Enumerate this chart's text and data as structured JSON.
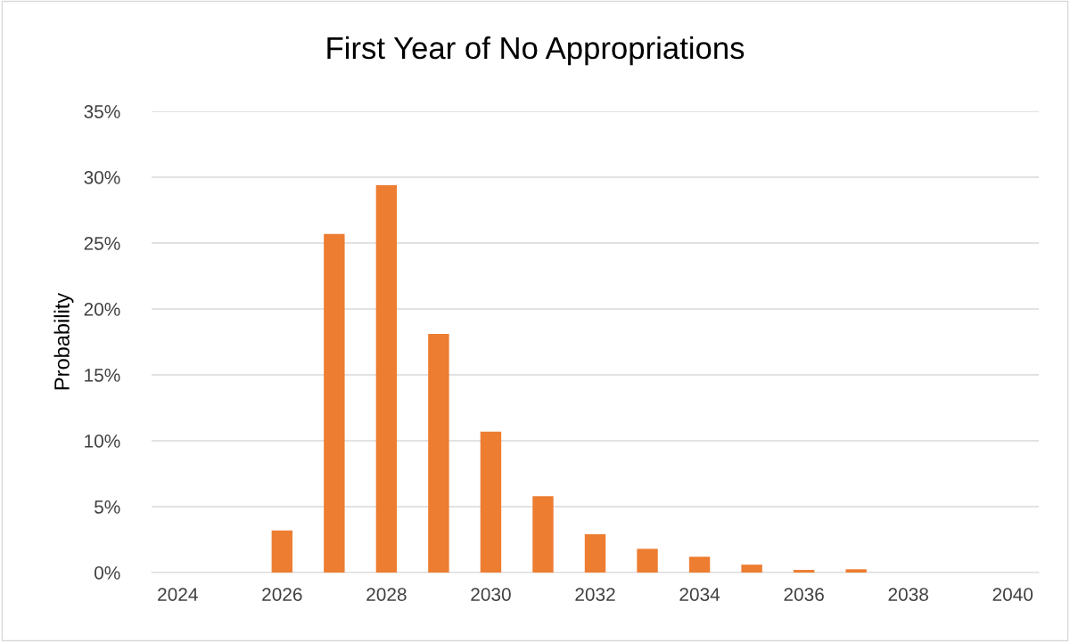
{
  "chart_data": {
    "type": "bar",
    "title": "First Year of No Appropriations",
    "ylabel": "Probability",
    "categories": [
      "2024",
      null,
      "2026",
      null,
      "2028",
      null,
      "2030",
      null,
      "2032",
      null,
      "2034",
      null,
      "2036",
      null,
      "2038",
      null,
      "2040"
    ],
    "values": [
      0,
      0,
      3.2,
      25.7,
      29.4,
      18.1,
      10.7,
      5.8,
      2.9,
      1.8,
      1.2,
      0.6,
      0.2,
      0.25,
      0,
      0,
      0
    ],
    "color": "#ed7d31",
    "ylim": [
      0,
      35
    ],
    "yticks": [
      {
        "value": 0,
        "label": "0%"
      },
      {
        "value": 5,
        "label": "5%"
      },
      {
        "value": 10,
        "label": "10%"
      },
      {
        "value": 15,
        "label": "15%"
      },
      {
        "value": 20,
        "label": "20%"
      },
      {
        "value": 25,
        "label": "25%"
      },
      {
        "value": 30,
        "label": "30%"
      },
      {
        "value": 35,
        "label": "35%"
      }
    ],
    "grid": "y",
    "legend": false
  }
}
